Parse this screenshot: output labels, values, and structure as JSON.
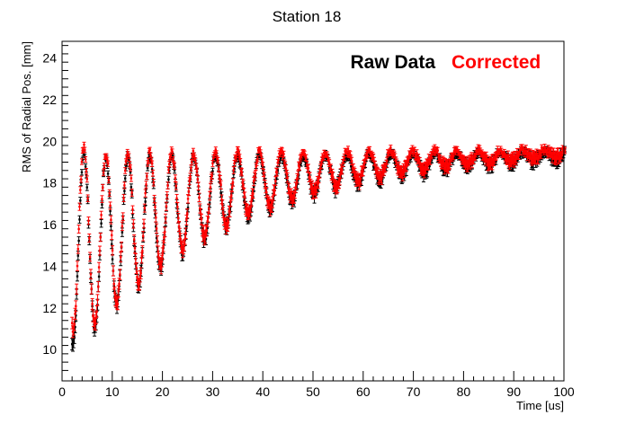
{
  "chart_data": {
    "type": "scatter",
    "title": "Station 18",
    "xlabel": "Time [us]",
    "ylabel": "RMS of Radial Pos. [mm]",
    "xlim": [
      0,
      100
    ],
    "ylim": [
      8.5,
      24.8
    ],
    "x_ticks": [
      "0",
      "10",
      "20",
      "30",
      "40",
      "50",
      "60",
      "70",
      "80",
      "90",
      "100"
    ],
    "y_ticks": [
      "10",
      "12",
      "14",
      "16",
      "18",
      "20",
      "22",
      "24"
    ],
    "grid": false,
    "legend_position": "top-right",
    "x_sampling": {
      "start": 2.0,
      "step": 0.149,
      "count": 660
    },
    "series": [
      {
        "name": "Raw Data",
        "color": "#000000",
        "model": {
          "period_us": 4.37,
          "asym_start": 19.2,
          "asym_end": 19.5,
          "upper_amp": 9.6,
          "lower_decay_us": 30,
          "settle_mm": 0.6,
          "settle_decay_us": 2
        }
      },
      {
        "name": "Corrected",
        "color": "#ff0000",
        "model": {
          "period_us": 4.37,
          "asym_start": 19.4,
          "asym_end": 19.6,
          "upper_amp": 9.7,
          "lower_decay_us": 30,
          "settle_mm": 1.4,
          "settle_decay_us": 1.5
        }
      }
    ]
  }
}
